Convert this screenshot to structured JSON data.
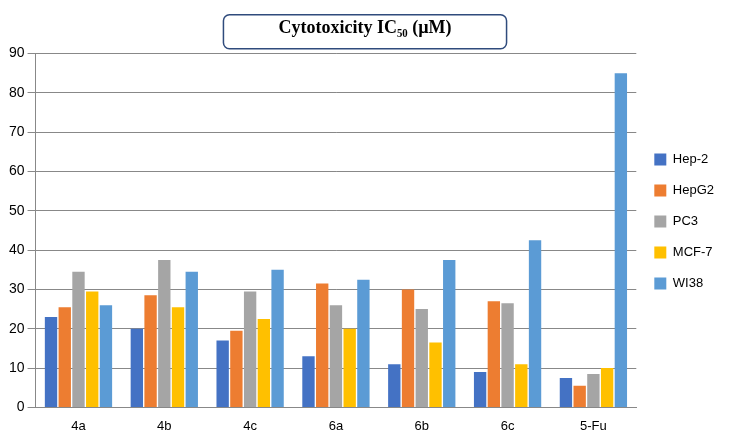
{
  "chart_data": {
    "type": "bar",
    "title": "Cytotoxicity IC₅₀ (µM)",
    "categories": [
      "4a",
      "4b",
      "4c",
      "6a",
      "6b",
      "6c",
      "5-Fu"
    ],
    "series": [
      {
        "name": "Hep-2",
        "color": "#4472c4",
        "values": [
          23,
          20,
          17,
          13,
          11,
          9,
          7.5
        ]
      },
      {
        "name": "HepG2",
        "color": "#ed7d31",
        "values": [
          25.5,
          28.5,
          19.5,
          31.5,
          30,
          27,
          5.5
        ]
      },
      {
        "name": "PC3",
        "color": "#a5a5a5",
        "values": [
          34.5,
          37.5,
          29.5,
          26,
          25,
          26.5,
          8.5
        ]
      },
      {
        "name": "MCF-7",
        "color": "#ffc000",
        "values": [
          29.5,
          25.5,
          22.5,
          20,
          16.5,
          11,
          10
        ]
      },
      {
        "name": "WI38",
        "color": "#5b9bd5",
        "values": [
          26,
          34.5,
          35,
          32.5,
          37.5,
          42.5,
          85
        ]
      }
    ],
    "ylim": [
      0,
      90
    ],
    "yticks": [
      0,
      10,
      20,
      30,
      40,
      50,
      60,
      70,
      80,
      90
    ],
    "grid": true,
    "legend": "right"
  }
}
